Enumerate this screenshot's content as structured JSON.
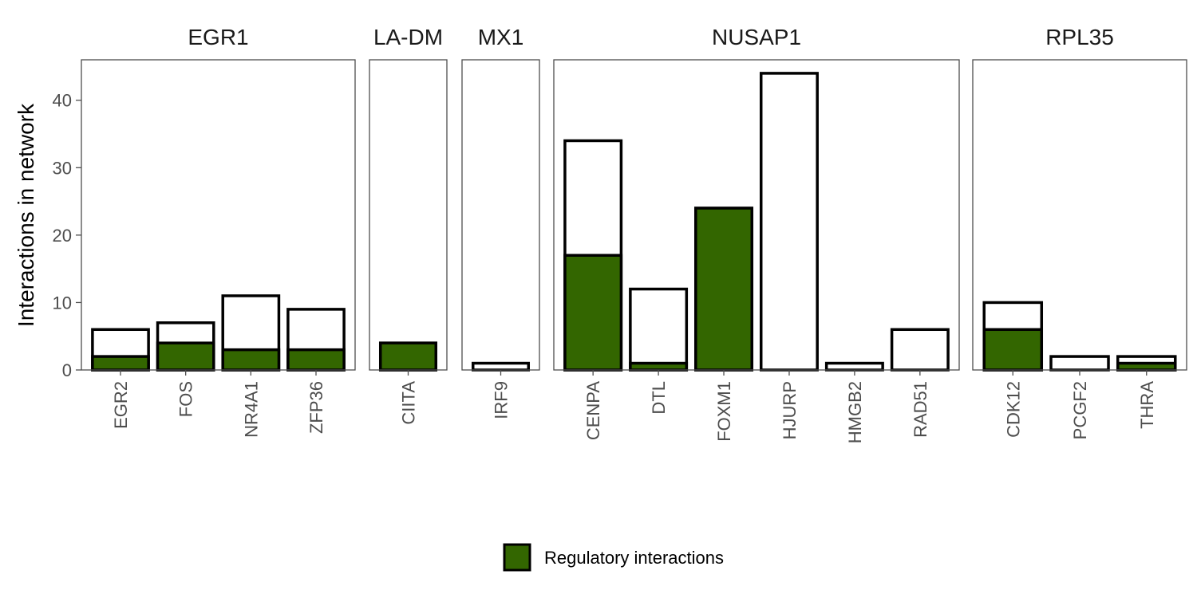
{
  "chart_data": {
    "type": "bar",
    "ylabel": "Interactions in network",
    "ylim": [
      0,
      46
    ],
    "yticks": [
      0,
      10,
      20,
      30,
      40
    ],
    "grid": false,
    "legend": {
      "position": "bottom",
      "entries": [
        {
          "name": "Regulatory interactions",
          "color": "#336600"
        }
      ]
    },
    "colors": {
      "regulatory": "#336600",
      "total": "#ffffff",
      "bar_outline": "#000000"
    },
    "facets": [
      {
        "title": "EGR1",
        "categories": [
          "EGR2",
          "FOS",
          "NR4A1",
          "ZFP36"
        ],
        "total": [
          6,
          7,
          11,
          9
        ],
        "regulatory": [
          2,
          4,
          3,
          3
        ]
      },
      {
        "title": "LA-DM",
        "categories": [
          "CIITA"
        ],
        "total": [
          4
        ],
        "regulatory": [
          4
        ]
      },
      {
        "title": "MX1",
        "categories": [
          "IRF9"
        ],
        "total": [
          1
        ],
        "regulatory": [
          0
        ]
      },
      {
        "title": "NUSAP1",
        "categories": [
          "CENPA",
          "DTL",
          "FOXM1",
          "HJURP",
          "HMGB2",
          "RAD51"
        ],
        "total": [
          34,
          12,
          24,
          44,
          1,
          6
        ],
        "regulatory": [
          17,
          1,
          24,
          0,
          0,
          0
        ]
      },
      {
        "title": "RPL35",
        "categories": [
          "CDK12",
          "PCGF2",
          "THRA"
        ],
        "total": [
          10,
          2,
          2
        ],
        "regulatory": [
          6,
          0,
          1
        ]
      }
    ]
  }
}
